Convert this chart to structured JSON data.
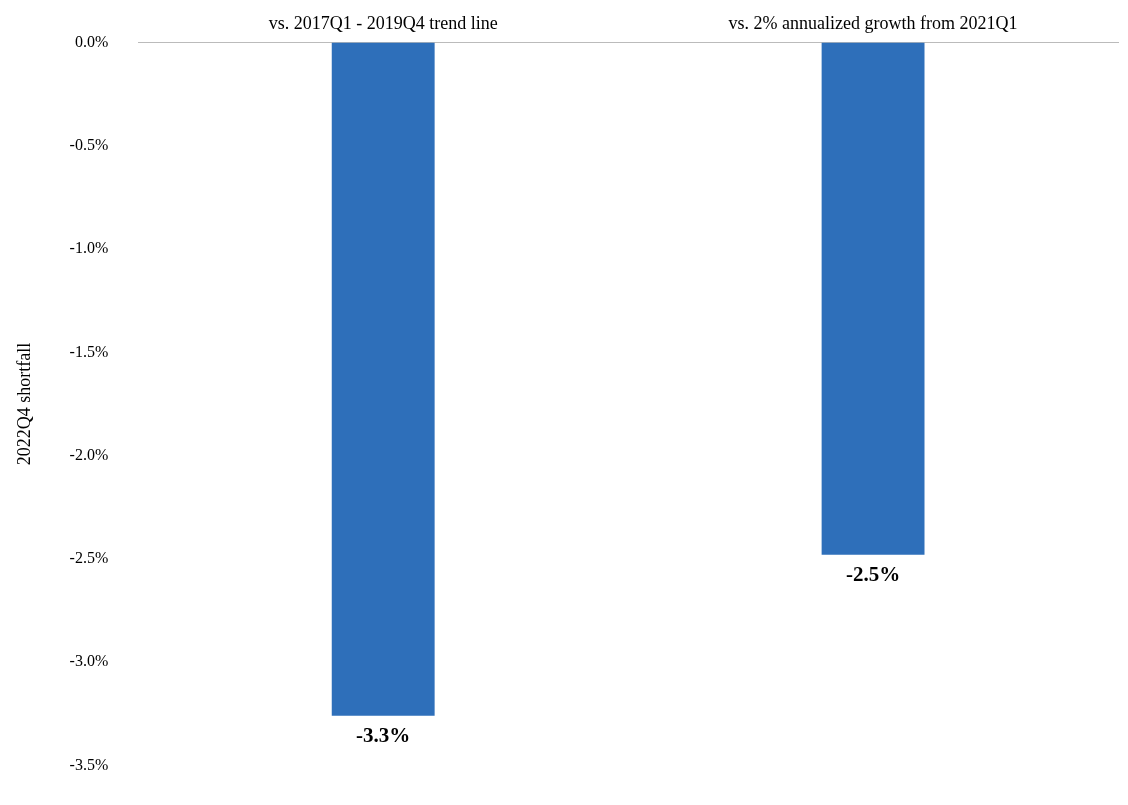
{
  "chart_data": {
    "type": "bar",
    "ylabel": "2022Q4 shortfall",
    "categories": [
      "vs. 2017Q1 - 2019Q4 trend line",
      "vs. 2% annualized growth from 2021Q1"
    ],
    "values": [
      -3.26,
      -2.48
    ],
    "color": "#2e6fba",
    "value_labels": [
      "-3.3%",
      "-2.5%"
    ],
    "ylim": [
      -3.5,
      0
    ],
    "yticks": [
      {
        "value": 0,
        "label": "0.0%"
      },
      {
        "value": -0.5,
        "label": "-0.5%"
      },
      {
        "value": -1,
        "label": "-1.0%"
      },
      {
        "value": -1.5,
        "label": "-1.5%"
      },
      {
        "value": -2,
        "label": "-2.0%"
      },
      {
        "value": -2.5,
        "label": "-2.5%"
      },
      {
        "value": -3,
        "label": "-3.0%"
      },
      {
        "value": -3.5,
        "label": "-3.5%"
      }
    ],
    "grid": false,
    "legend": false
  }
}
